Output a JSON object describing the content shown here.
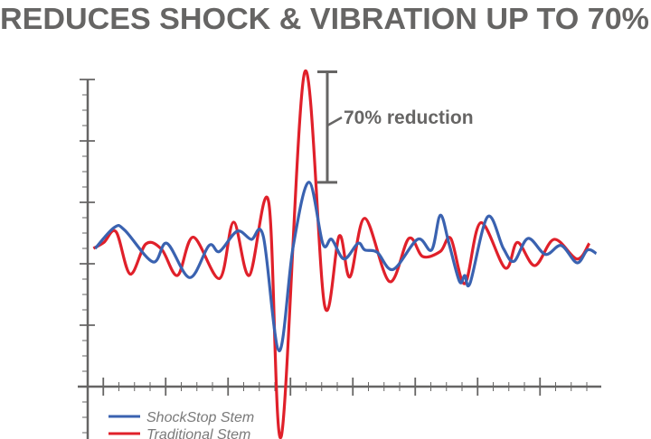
{
  "chart_data": {
    "type": "line",
    "title": "REDUCES SHOCK & VIBRATION UP TO 70%",
    "xlabel": "",
    "ylabel": "",
    "xlim": [
      0,
      33
    ],
    "ylim": [
      -3.5,
      20
    ],
    "x_major_ticks": [
      1,
      5,
      9,
      13,
      17,
      21,
      25,
      29
    ],
    "y_major_ticks": [
      0,
      4,
      8,
      12,
      16,
      20
    ],
    "tick_labels_shown": false,
    "grid": false,
    "legend_position": "bottom-left",
    "annotation": {
      "text": "70% reduction",
      "from": 13.3,
      "to": 20.5
    },
    "series": [
      {
        "name": "ShockStop Stem",
        "color": "#3a62b0",
        "points": [
          [
            0.48,
            9.0
          ],
          [
            1.71,
            10.37
          ],
          [
            2.38,
            10.18
          ],
          [
            4.18,
            8.12
          ],
          [
            5.08,
            9.33
          ],
          [
            6.54,
            7.1
          ],
          [
            7.78,
            9.19
          ],
          [
            8.45,
            8.8
          ],
          [
            9.58,
            10.12
          ],
          [
            10.48,
            9.59
          ],
          [
            11.26,
            9.78
          ],
          [
            12.27,
            2.33
          ],
          [
            13.17,
            9.1
          ],
          [
            14.18,
            13.31
          ],
          [
            15.08,
            9.29
          ],
          [
            15.64,
            9.59
          ],
          [
            16.43,
            8.31
          ],
          [
            17.33,
            9.33
          ],
          [
            17.77,
            8.9
          ],
          [
            18.56,
            8.75
          ],
          [
            19.58,
            7.63
          ],
          [
            21.15,
            9.59
          ],
          [
            22.05,
            8.9
          ],
          [
            22.61,
            11.16
          ],
          [
            23.17,
            9.29
          ],
          [
            23.84,
            6.84
          ],
          [
            24.18,
            7.24
          ],
          [
            24.52,
            6.75
          ],
          [
            25.64,
            11.06
          ],
          [
            26.65,
            9.0
          ],
          [
            27.33,
            8.16
          ],
          [
            28.23,
            9.65
          ],
          [
            29.35,
            8.61
          ],
          [
            30.36,
            9.19
          ],
          [
            31.37,
            8.06
          ],
          [
            32.05,
            8.9
          ],
          [
            32.61,
            8.67
          ]
        ]
      },
      {
        "name": "Traditional Stem",
        "color": "#e0202a",
        "points": [
          [
            0.37,
            9.0
          ],
          [
            1.04,
            9.39
          ],
          [
            1.82,
            10.08
          ],
          [
            2.72,
            7.33
          ],
          [
            3.73,
            9.29
          ],
          [
            4.74,
            8.94
          ],
          [
            5.76,
            7.24
          ],
          [
            6.77,
            9.73
          ],
          [
            8.45,
            7.04
          ],
          [
            9.35,
            10.71
          ],
          [
            10.36,
            7.24
          ],
          [
            11.6,
            12.04
          ],
          [
            12.41,
            -3.24
          ],
          [
            13.91,
            20.47
          ],
          [
            15.19,
            5.28
          ],
          [
            16.13,
            9.82
          ],
          [
            16.81,
            7.14
          ],
          [
            17.77,
            10.96
          ],
          [
            19.35,
            6.84
          ],
          [
            20.59,
            9.65
          ],
          [
            21.48,
            8.47
          ],
          [
            22.61,
            8.8
          ],
          [
            23.28,
            9.65
          ],
          [
            24.18,
            6.71
          ],
          [
            25.19,
            10.67
          ],
          [
            26.77,
            7.72
          ],
          [
            27.55,
            9.39
          ],
          [
            28.67,
            7.88
          ],
          [
            29.91,
            9.59
          ],
          [
            31.37,
            8.31
          ],
          [
            32.16,
            9.33
          ]
        ]
      }
    ]
  },
  "axis_color": "#666564"
}
